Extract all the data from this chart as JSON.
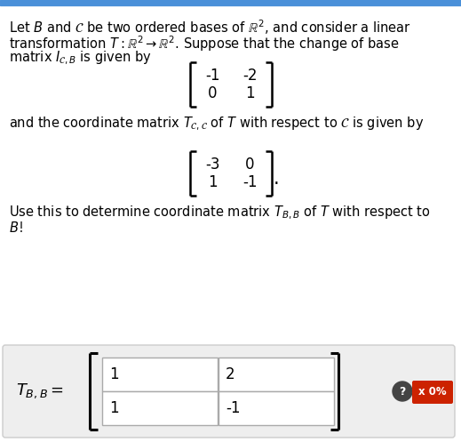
{
  "top_bar_color": "#4a90d9",
  "bg_color": "#ffffff",
  "text_color": "#000000",
  "matrix1_rows": [
    [
      "-1",
      "-2"
    ],
    [
      "0",
      "1"
    ]
  ],
  "matrix2_rows": [
    [
      "-3",
      "0"
    ],
    [
      "1",
      "-1"
    ]
  ],
  "answer_matrix": [
    [
      "1",
      "2"
    ],
    [
      "1",
      "-1"
    ]
  ],
  "answer_box_bg": "#eeeeee",
  "answer_box_border": "#cccccc",
  "cell_bg": "#ffffff",
  "cell_border": "#aaaaaa",
  "button_bg": "#cc2200",
  "button_text": "x 0%",
  "font_size_main": 10.5,
  "font_size_matrix": 12,
  "font_size_answer_label": 12
}
